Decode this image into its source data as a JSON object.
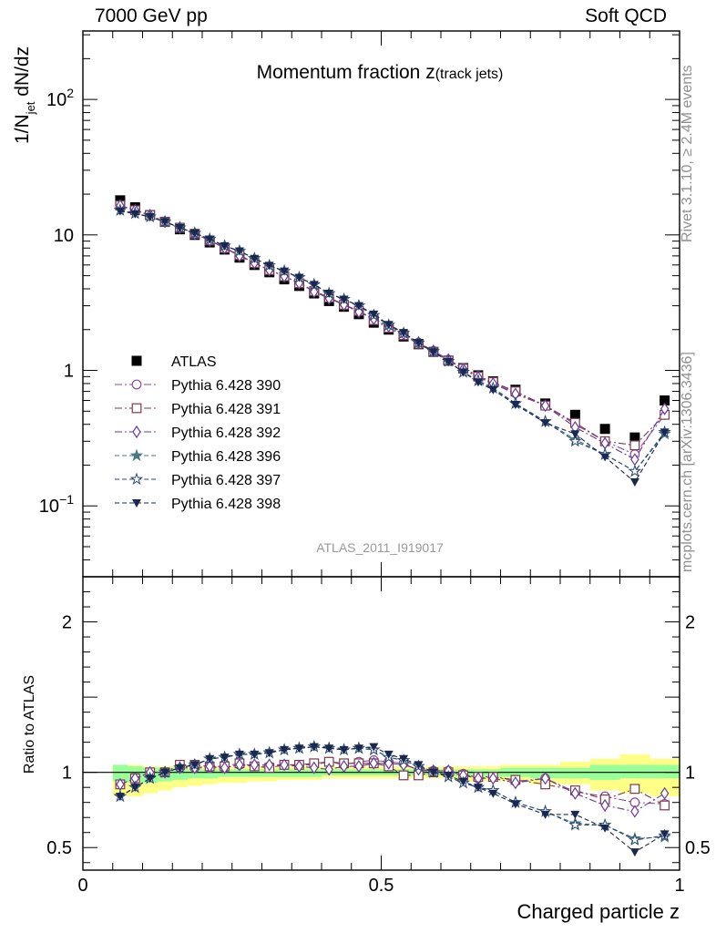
{
  "header": {
    "left": "7000 GeV pp",
    "right": "Soft QCD"
  },
  "side_labels": {
    "rivet": "Rivet 3.1.10, ≥ 2.4M events",
    "mcplots": "mcplots.cern.ch [arXiv:1306.3436]"
  },
  "colors": {
    "data": "#000000",
    "band_inner": "#99ff99",
    "band_outer": "#ffff88"
  },
  "chart_data": [
    {
      "type": "scatter",
      "title": "Momentum fraction z(track jets)",
      "ylabel": "1/N_jet dN/dz",
      "xlabel": "Charged particle z",
      "watermark": "ATLAS_2011_I919017",
      "ylog": true,
      "xlim": [
        0,
        1
      ],
      "ylim": [
        0.03,
        320
      ],
      "yticks": [
        {
          "v": 100,
          "label": "10^2"
        },
        {
          "v": 10,
          "label": "10"
        },
        {
          "v": 1,
          "label": "1"
        },
        {
          "v": 0.1,
          "label": "10^-1"
        }
      ],
      "legend_position": "middle-left",
      "x": [
        0.0625,
        0.0875,
        0.1125,
        0.1375,
        0.1625,
        0.1875,
        0.2125,
        0.2375,
        0.2625,
        0.2875,
        0.3125,
        0.3375,
        0.3625,
        0.3875,
        0.4125,
        0.4375,
        0.4625,
        0.4875,
        0.5125,
        0.5375,
        0.5625,
        0.5875,
        0.6125,
        0.6375,
        0.6625,
        0.6875,
        0.725,
        0.775,
        0.825,
        0.875,
        0.925,
        0.975
      ],
      "series": [
        {
          "name": "ATLAS",
          "marker": "square-filled",
          "color": "#000000",
          "line": "none",
          "values": [
            18.0,
            16.0,
            14.0,
            12.5,
            11.0,
            10.0,
            8.8,
            7.8,
            6.8,
            6.0,
            5.3,
            4.7,
            4.2,
            3.7,
            3.25,
            2.95,
            2.6,
            2.25,
            2.0,
            1.78,
            1.56,
            1.37,
            1.18,
            1.04,
            0.92,
            0.83,
            0.72,
            0.57,
            0.47,
            0.37,
            0.32,
            0.6
          ]
        },
        {
          "name": "Pythia 6.428 390",
          "marker": "circle-open",
          "color": "#8b4b8f",
          "line": "dashdot",
          "values": [
            16.5,
            15.2,
            14.0,
            12.5,
            11.3,
            10.2,
            9.1,
            8.0,
            7.1,
            6.2,
            5.5,
            4.95,
            4.4,
            3.85,
            3.45,
            3.05,
            2.75,
            2.4,
            2.12,
            1.86,
            1.6,
            1.39,
            1.2,
            1.04,
            0.91,
            0.82,
            0.68,
            0.55,
            0.4,
            0.3,
            0.24,
            0.47
          ]
        },
        {
          "name": "Pythia 6.428 391",
          "marker": "square-open",
          "color": "#7a3a50",
          "line": "dashdot",
          "values": [
            16.5,
            15.2,
            14.0,
            12.5,
            11.3,
            10.2,
            9.1,
            8.0,
            7.1,
            6.2,
            5.5,
            4.95,
            4.4,
            3.85,
            3.45,
            3.05,
            2.75,
            2.35,
            2.06,
            1.82,
            1.57,
            1.37,
            1.18,
            1.03,
            0.9,
            0.82,
            0.7,
            0.55,
            0.41,
            0.3,
            0.28,
            0.47
          ]
        },
        {
          "name": "Pythia 6.428 392",
          "marker": "diamond-open",
          "color": "#6a3a9a",
          "line": "dashdot",
          "values": [
            16.5,
            15.2,
            14.0,
            12.5,
            11.3,
            10.2,
            9.1,
            8.0,
            7.0,
            6.2,
            5.5,
            4.95,
            4.4,
            3.8,
            3.4,
            3.05,
            2.7,
            2.4,
            2.12,
            1.86,
            1.6,
            1.39,
            1.2,
            1.02,
            0.89,
            0.8,
            0.67,
            0.55,
            0.38,
            0.29,
            0.22,
            0.52
          ]
        },
        {
          "name": "Pythia 6.428 396",
          "marker": "star-filled",
          "color": "#4a7880",
          "line": "dashed",
          "values": [
            15.2,
            14.4,
            13.6,
            12.5,
            11.3,
            10.3,
            9.3,
            8.3,
            7.6,
            6.7,
            5.95,
            5.4,
            4.85,
            4.3,
            3.7,
            3.35,
            3.0,
            2.55,
            2.16,
            1.88,
            1.6,
            1.38,
            1.17,
            0.97,
            0.84,
            0.74,
            0.57,
            0.42,
            0.31,
            0.24,
            0.18,
            0.34
          ]
        },
        {
          "name": "Pythia 6.428 397",
          "marker": "star-open",
          "color": "#2a4a78",
          "line": "dashed",
          "values": [
            15.2,
            14.4,
            13.6,
            12.5,
            11.3,
            10.3,
            9.3,
            8.3,
            7.6,
            6.7,
            5.95,
            5.4,
            4.85,
            4.3,
            3.7,
            3.35,
            3.0,
            2.55,
            2.16,
            1.88,
            1.6,
            1.38,
            1.17,
            0.97,
            0.84,
            0.74,
            0.57,
            0.42,
            0.3,
            0.24,
            0.18,
            0.35
          ]
        },
        {
          "name": "Pythia 6.428 398",
          "marker": "triangle-down-filled",
          "color": "#1a2850",
          "line": "dashed",
          "values": [
            15.0,
            14.3,
            13.6,
            12.5,
            11.3,
            10.3,
            9.3,
            8.3,
            7.6,
            6.7,
            5.95,
            5.4,
            4.85,
            4.3,
            3.7,
            3.35,
            3.0,
            2.6,
            2.18,
            1.9,
            1.6,
            1.37,
            1.16,
            0.97,
            0.82,
            0.72,
            0.56,
            0.41,
            0.34,
            0.23,
            0.15,
            0.35
          ]
        }
      ]
    },
    {
      "type": "scatter",
      "ylabel": "Ratio to ATLAS",
      "xlabel": "Charged particle z",
      "xlim": [
        0,
        1
      ],
      "ylim": [
        0.35,
        2.3
      ],
      "yticks": [
        {
          "v": 2,
          "label": "2"
        },
        {
          "v": 1,
          "label": "1"
        },
        {
          "v": 0.5,
          "label": "0.5"
        }
      ],
      "xticks": [
        {
          "v": 0,
          "label": "0"
        },
        {
          "v": 0.5,
          "label": "0.5"
        },
        {
          "v": 1,
          "label": "1"
        }
      ],
      "band_edges": [
        0.05,
        0.075,
        0.1,
        0.125,
        0.15,
        0.175,
        0.2,
        0.225,
        0.25,
        0.275,
        0.3,
        0.325,
        0.35,
        0.375,
        0.4,
        0.425,
        0.45,
        0.475,
        0.5,
        0.525,
        0.55,
        0.575,
        0.6,
        0.625,
        0.65,
        0.675,
        0.7,
        0.75,
        0.8,
        0.85,
        0.9,
        0.95,
        1.0
      ],
      "band_inner": [
        [
          0.94,
          1.05
        ],
        [
          0.93,
          1.04
        ],
        [
          0.93,
          1.03
        ],
        [
          0.94,
          1.03
        ],
        [
          0.95,
          1.03
        ],
        [
          0.96,
          1.02
        ],
        [
          0.96,
          1.02
        ],
        [
          0.97,
          1.02
        ],
        [
          0.97,
          1.02
        ],
        [
          0.97,
          1.02
        ],
        [
          0.97,
          1.02
        ],
        [
          0.97,
          1.02
        ],
        [
          0.97,
          1.02
        ],
        [
          0.97,
          1.02
        ],
        [
          0.98,
          1.02
        ],
        [
          0.98,
          1.02
        ],
        [
          0.98,
          1.02
        ],
        [
          0.98,
          1.02
        ],
        [
          0.98,
          1.02
        ],
        [
          0.98,
          1.02
        ],
        [
          0.98,
          1.02
        ],
        [
          0.98,
          1.02
        ],
        [
          0.98,
          1.02
        ],
        [
          0.97,
          1.02
        ],
        [
          0.97,
          1.02
        ],
        [
          0.97,
          1.02
        ],
        [
          0.97,
          1.03
        ],
        [
          0.96,
          1.03
        ],
        [
          0.96,
          1.03
        ],
        [
          0.95,
          1.05
        ],
        [
          0.96,
          1.05
        ],
        [
          0.96,
          1.05
        ]
      ],
      "band_outer": [
        [
          0.84,
          1.05
        ],
        [
          0.84,
          1.05
        ],
        [
          0.86,
          1.04
        ],
        [
          0.88,
          1.04
        ],
        [
          0.9,
          1.04
        ],
        [
          0.91,
          1.04
        ],
        [
          0.92,
          1.04
        ],
        [
          0.93,
          1.04
        ],
        [
          0.93,
          1.04
        ],
        [
          0.94,
          1.04
        ],
        [
          0.94,
          1.04
        ],
        [
          0.95,
          1.04
        ],
        [
          0.95,
          1.04
        ],
        [
          0.95,
          1.04
        ],
        [
          0.96,
          1.04
        ],
        [
          0.96,
          1.04
        ],
        [
          0.96,
          1.04
        ],
        [
          0.96,
          1.04
        ],
        [
          0.96,
          1.04
        ],
        [
          0.96,
          1.04
        ],
        [
          0.96,
          1.04
        ],
        [
          0.96,
          1.04
        ],
        [
          0.96,
          1.04
        ],
        [
          0.94,
          1.04
        ],
        [
          0.94,
          1.04
        ],
        [
          0.94,
          1.04
        ],
        [
          0.94,
          1.05
        ],
        [
          0.92,
          1.05
        ],
        [
          0.92,
          1.07
        ],
        [
          0.88,
          1.09
        ],
        [
          0.86,
          1.12
        ],
        [
          0.84,
          1.09
        ]
      ],
      "series": [
        {
          "name": "Pythia 6.428 390",
          "marker": "circle-open",
          "color": "#8b4b8f",
          "line": "dashdot",
          "values": [
            0.92,
            0.96,
            1.0,
            1.0,
            1.03,
            1.03,
            1.03,
            1.03,
            1.05,
            1.04,
            1.04,
            1.05,
            1.05,
            1.05,
            1.07,
            1.05,
            1.07,
            1.08,
            1.07,
            1.06,
            1.01,
            1.01,
            1.01,
            0.99,
            0.96,
            0.97,
            0.94,
            0.96,
            0.87,
            0.84,
            0.8,
            0.79
          ]
        },
        {
          "name": "Pythia 6.428 391",
          "marker": "square-open",
          "color": "#7a3a50",
          "line": "dashdot",
          "values": [
            0.92,
            0.96,
            1.0,
            1.0,
            1.05,
            1.05,
            1.04,
            1.04,
            1.06,
            1.04,
            1.03,
            1.05,
            1.05,
            1.06,
            1.07,
            1.06,
            1.06,
            1.06,
            1.04,
            0.98,
            0.98,
            1.0,
            1.0,
            0.98,
            0.97,
            0.97,
            0.95,
            0.92,
            0.88,
            0.82,
            0.89,
            0.78
          ]
        },
        {
          "name": "Pythia 6.428 392",
          "marker": "diamond-open",
          "color": "#6a3a9a",
          "line": "dashdot",
          "values": [
            0.92,
            0.96,
            1.0,
            1.0,
            1.03,
            1.03,
            1.04,
            1.03,
            1.05,
            1.05,
            1.05,
            1.05,
            1.04,
            1.03,
            1.02,
            1.04,
            1.04,
            1.06,
            1.06,
            1.05,
            1.02,
            1.01,
            1.01,
            0.98,
            0.96,
            0.96,
            0.93,
            0.96,
            0.86,
            0.78,
            0.74,
            0.86
          ]
        },
        {
          "name": "Pythia 6.428 396",
          "marker": "star-filled",
          "color": "#4a7880",
          "line": "dashed",
          "values": [
            0.84,
            0.9,
            0.96,
            1.0,
            1.03,
            1.05,
            1.09,
            1.1,
            1.12,
            1.12,
            1.13,
            1.15,
            1.16,
            1.17,
            1.16,
            1.15,
            1.16,
            1.15,
            1.1,
            1.08,
            1.04,
            1.0,
            0.97,
            0.93,
            0.9,
            0.88,
            0.8,
            0.74,
            0.66,
            0.65,
            0.56,
            0.57
          ]
        },
        {
          "name": "Pythia 6.428 397",
          "marker": "star-open",
          "color": "#2a4a78",
          "line": "dashed",
          "values": [
            0.84,
            0.9,
            0.96,
            1.0,
            1.03,
            1.05,
            1.09,
            1.1,
            1.12,
            1.12,
            1.13,
            1.15,
            1.16,
            1.17,
            1.16,
            1.15,
            1.16,
            1.15,
            1.1,
            1.08,
            1.04,
            1.0,
            0.97,
            0.93,
            0.9,
            0.88,
            0.8,
            0.74,
            0.65,
            0.65,
            0.55,
            0.58
          ]
        },
        {
          "name": "Pythia 6.428 398",
          "marker": "triangle-down-filled",
          "color": "#1a2850",
          "line": "dashed",
          "values": [
            0.84,
            0.9,
            0.96,
            1.0,
            1.03,
            1.05,
            1.09,
            1.1,
            1.12,
            1.12,
            1.13,
            1.15,
            1.16,
            1.17,
            1.16,
            1.15,
            1.16,
            1.17,
            1.12,
            1.09,
            1.05,
            1.0,
            0.98,
            0.94,
            0.9,
            0.86,
            0.79,
            0.72,
            0.72,
            0.63,
            0.47,
            0.59
          ]
        }
      ]
    }
  ]
}
